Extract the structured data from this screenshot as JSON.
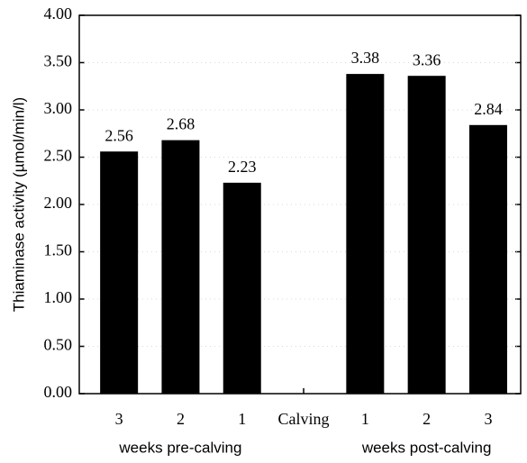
{
  "chart_data": {
    "type": "bar",
    "ylabel": "Thiaminase activity (µmol/min/l)",
    "categories": [
      "3",
      "2",
      "1",
      "Calving",
      "1",
      "2",
      "3"
    ],
    "values": [
      2.56,
      2.68,
      2.23,
      null,
      3.38,
      3.36,
      2.84
    ],
    "x_group_labels": [
      "weeks pre-calving",
      "weeks post-calving"
    ],
    "color": "#000000",
    "ylim": [
      0,
      4
    ],
    "yticks": [
      {
        "value": 0,
        "label": "0.00"
      },
      {
        "value": 0.5,
        "label": "0.50"
      },
      {
        "value": 1,
        "label": "1.00"
      },
      {
        "value": 1.5,
        "label": "1.50"
      },
      {
        "value": 2,
        "label": "2.00"
      },
      {
        "value": 2.5,
        "label": "2.50"
      },
      {
        "value": 3,
        "label": "3.00"
      },
      {
        "value": 3.5,
        "label": "3.50"
      },
      {
        "value": 4,
        "label": "4.00"
      }
    ],
    "grid": true
  }
}
